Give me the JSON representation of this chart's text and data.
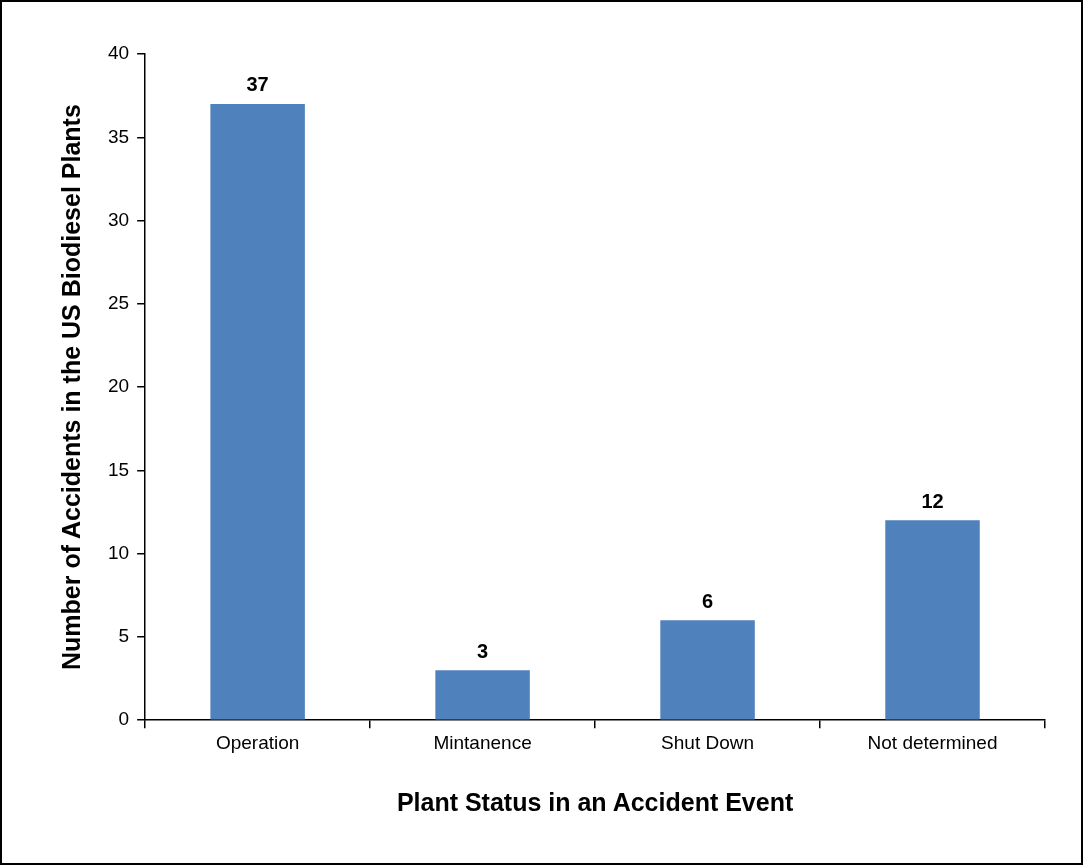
{
  "chart_data": {
    "type": "bar",
    "xlabel": "Plant Status in an Accident Event",
    "ylabel": "Number of Accidents in the US Biodiesel Plants",
    "categories": [
      "Operation",
      "Mintanence",
      "Shut Down",
      "Not determined"
    ],
    "values": [
      37,
      3,
      6,
      12
    ],
    "color": "#4f81bd",
    "ylim": [
      0,
      40
    ],
    "yticks": [
      0,
      5,
      10,
      15,
      20,
      25,
      30,
      35,
      40
    ],
    "data_labels": true,
    "legend": false
  }
}
